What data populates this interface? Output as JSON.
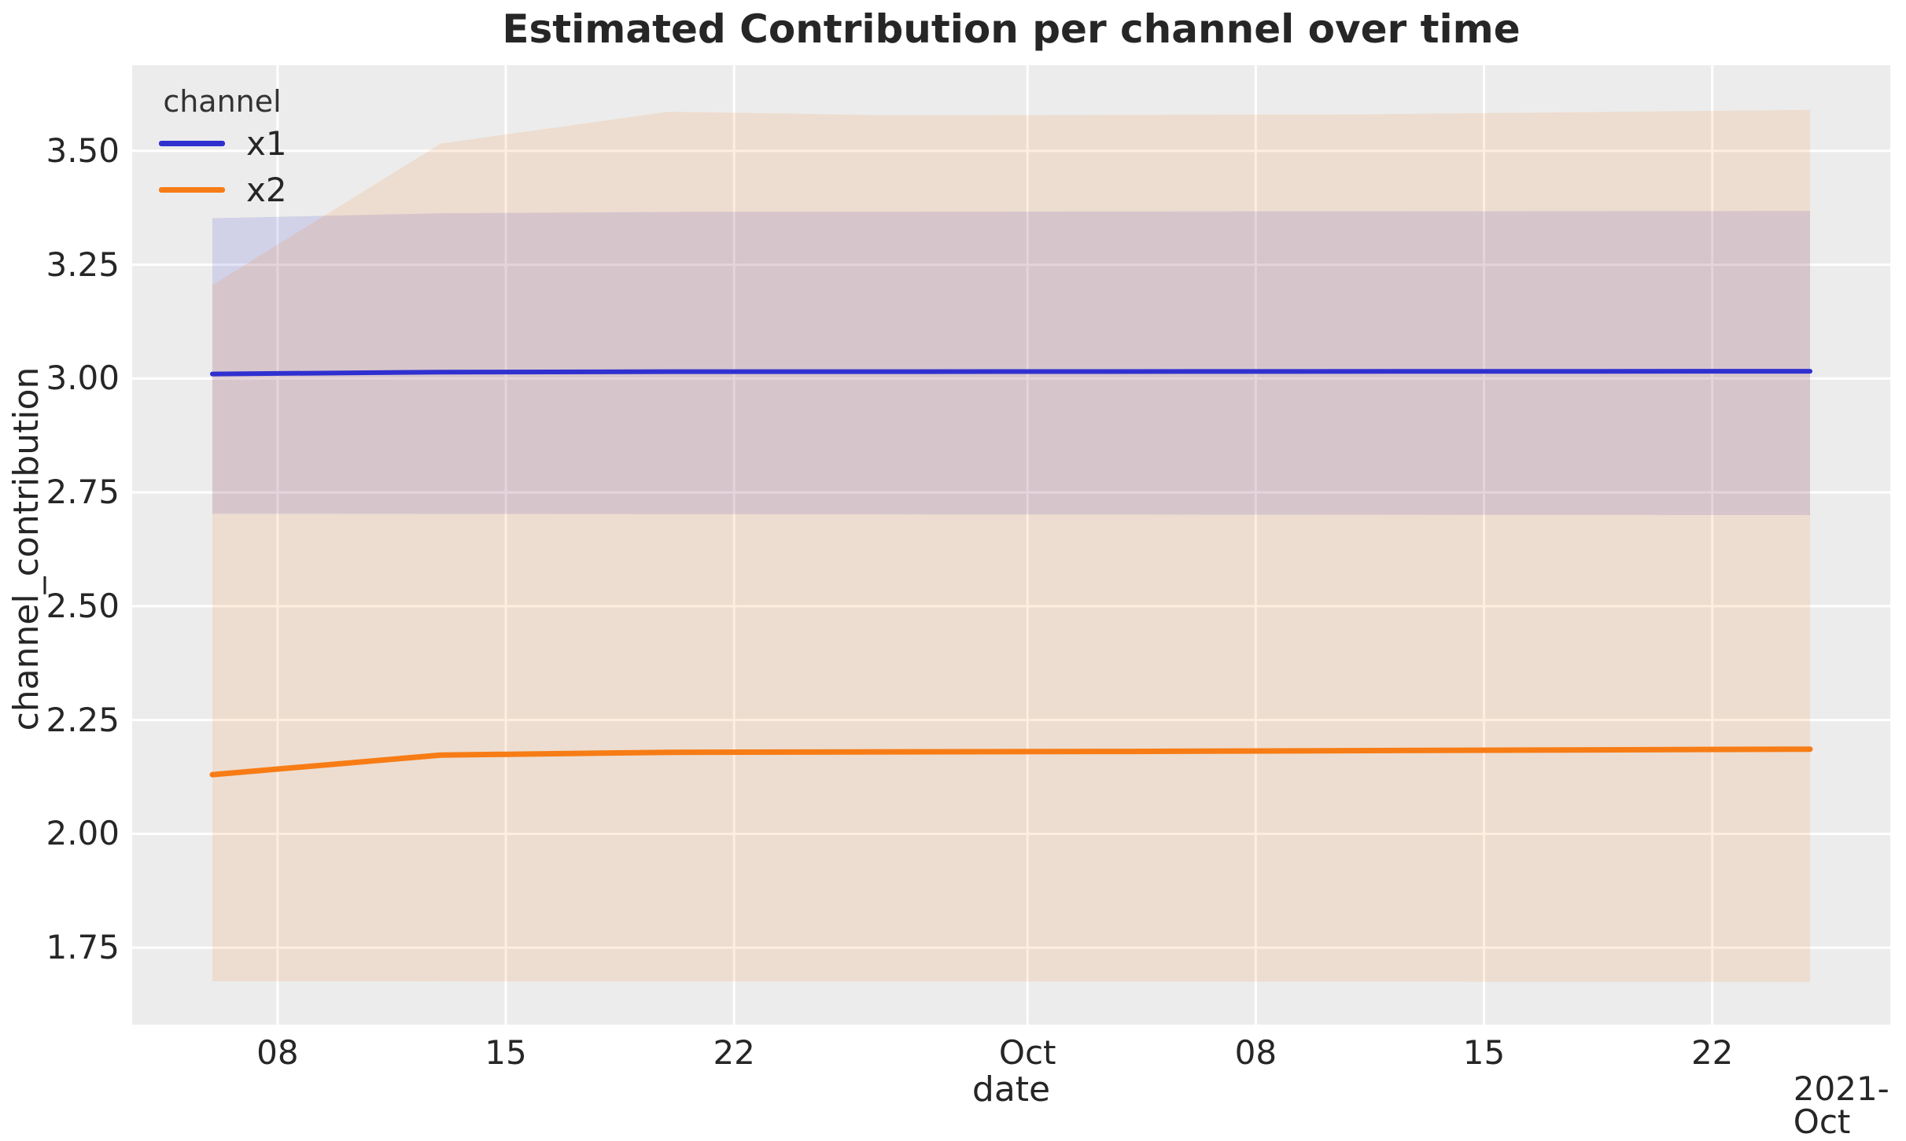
{
  "chart_data": {
    "type": "line",
    "title": "Estimated Contribution per channel over time",
    "xlabel": "date",
    "ylabel": "channel_contribution",
    "x_offset_label": "2021-Oct",
    "x_axis_dates": "daily from 2021-09-06 to 2021-10-25; x values are day offsets from 2021-09-06",
    "xlim": [
      -2.46,
      51.46
    ],
    "ylim": [
      1.581,
      3.688
    ],
    "grid": true,
    "legend": {
      "title": "channel",
      "position": "upper left",
      "items": [
        {
          "label": "x1"
        },
        {
          "label": "x2"
        }
      ]
    },
    "colors": {
      "plot_bg": "#ececec",
      "gridline": "#ffffff",
      "text": "#262626",
      "x1": "#3030d0",
      "x2": "#f77c15"
    },
    "xticks": [
      {
        "offset": 2,
        "label": "08"
      },
      {
        "offset": 9,
        "label": "15"
      },
      {
        "offset": 16,
        "label": "22"
      },
      {
        "offset": 25,
        "label": "Oct"
      },
      {
        "offset": 32,
        "label": "08"
      },
      {
        "offset": 39,
        "label": "15"
      },
      {
        "offset": 46,
        "label": "22"
      }
    ],
    "yticks": [
      {
        "value": 3.5,
        "label": "3.50"
      },
      {
        "value": 3.25,
        "label": "3.25"
      },
      {
        "value": 3.0,
        "label": "3.00"
      },
      {
        "value": 2.75,
        "label": "2.75"
      },
      {
        "value": 2.5,
        "label": "2.50"
      },
      {
        "value": 2.25,
        "label": "2.25"
      },
      {
        "value": 2.0,
        "label": "2.00"
      },
      {
        "value": 1.75,
        "label": "1.75"
      }
    ],
    "series": [
      {
        "name": "x1",
        "color": "#3030d0",
        "line_width": 6,
        "band_opacity": 0.14,
        "mean": [
          [
            0,
            3.01
          ],
          [
            7,
            3.014
          ],
          [
            14,
            3.015
          ],
          [
            49,
            3.016
          ]
        ],
        "band_lower": [
          [
            0,
            2.703
          ],
          [
            49,
            2.7
          ]
        ],
        "band_upper": [
          [
            0,
            3.352
          ],
          [
            7,
            3.363
          ],
          [
            14,
            3.366
          ],
          [
            49,
            3.368
          ]
        ]
      },
      {
        "name": "x2",
        "color": "#f77c15",
        "line_width": 7,
        "band_opacity": 0.13,
        "mean": [
          [
            0,
            2.13
          ],
          [
            7,
            2.173
          ],
          [
            14,
            2.179
          ],
          [
            28,
            2.181
          ],
          [
            49,
            2.186
          ]
        ],
        "band_lower": [
          [
            0,
            1.676
          ],
          [
            49,
            1.675
          ]
        ],
        "band_upper": [
          [
            0,
            3.205
          ],
          [
            7,
            3.516
          ],
          [
            14,
            3.586
          ],
          [
            21,
            3.578
          ],
          [
            35,
            3.58
          ],
          [
            49,
            3.59
          ]
        ]
      }
    ]
  }
}
